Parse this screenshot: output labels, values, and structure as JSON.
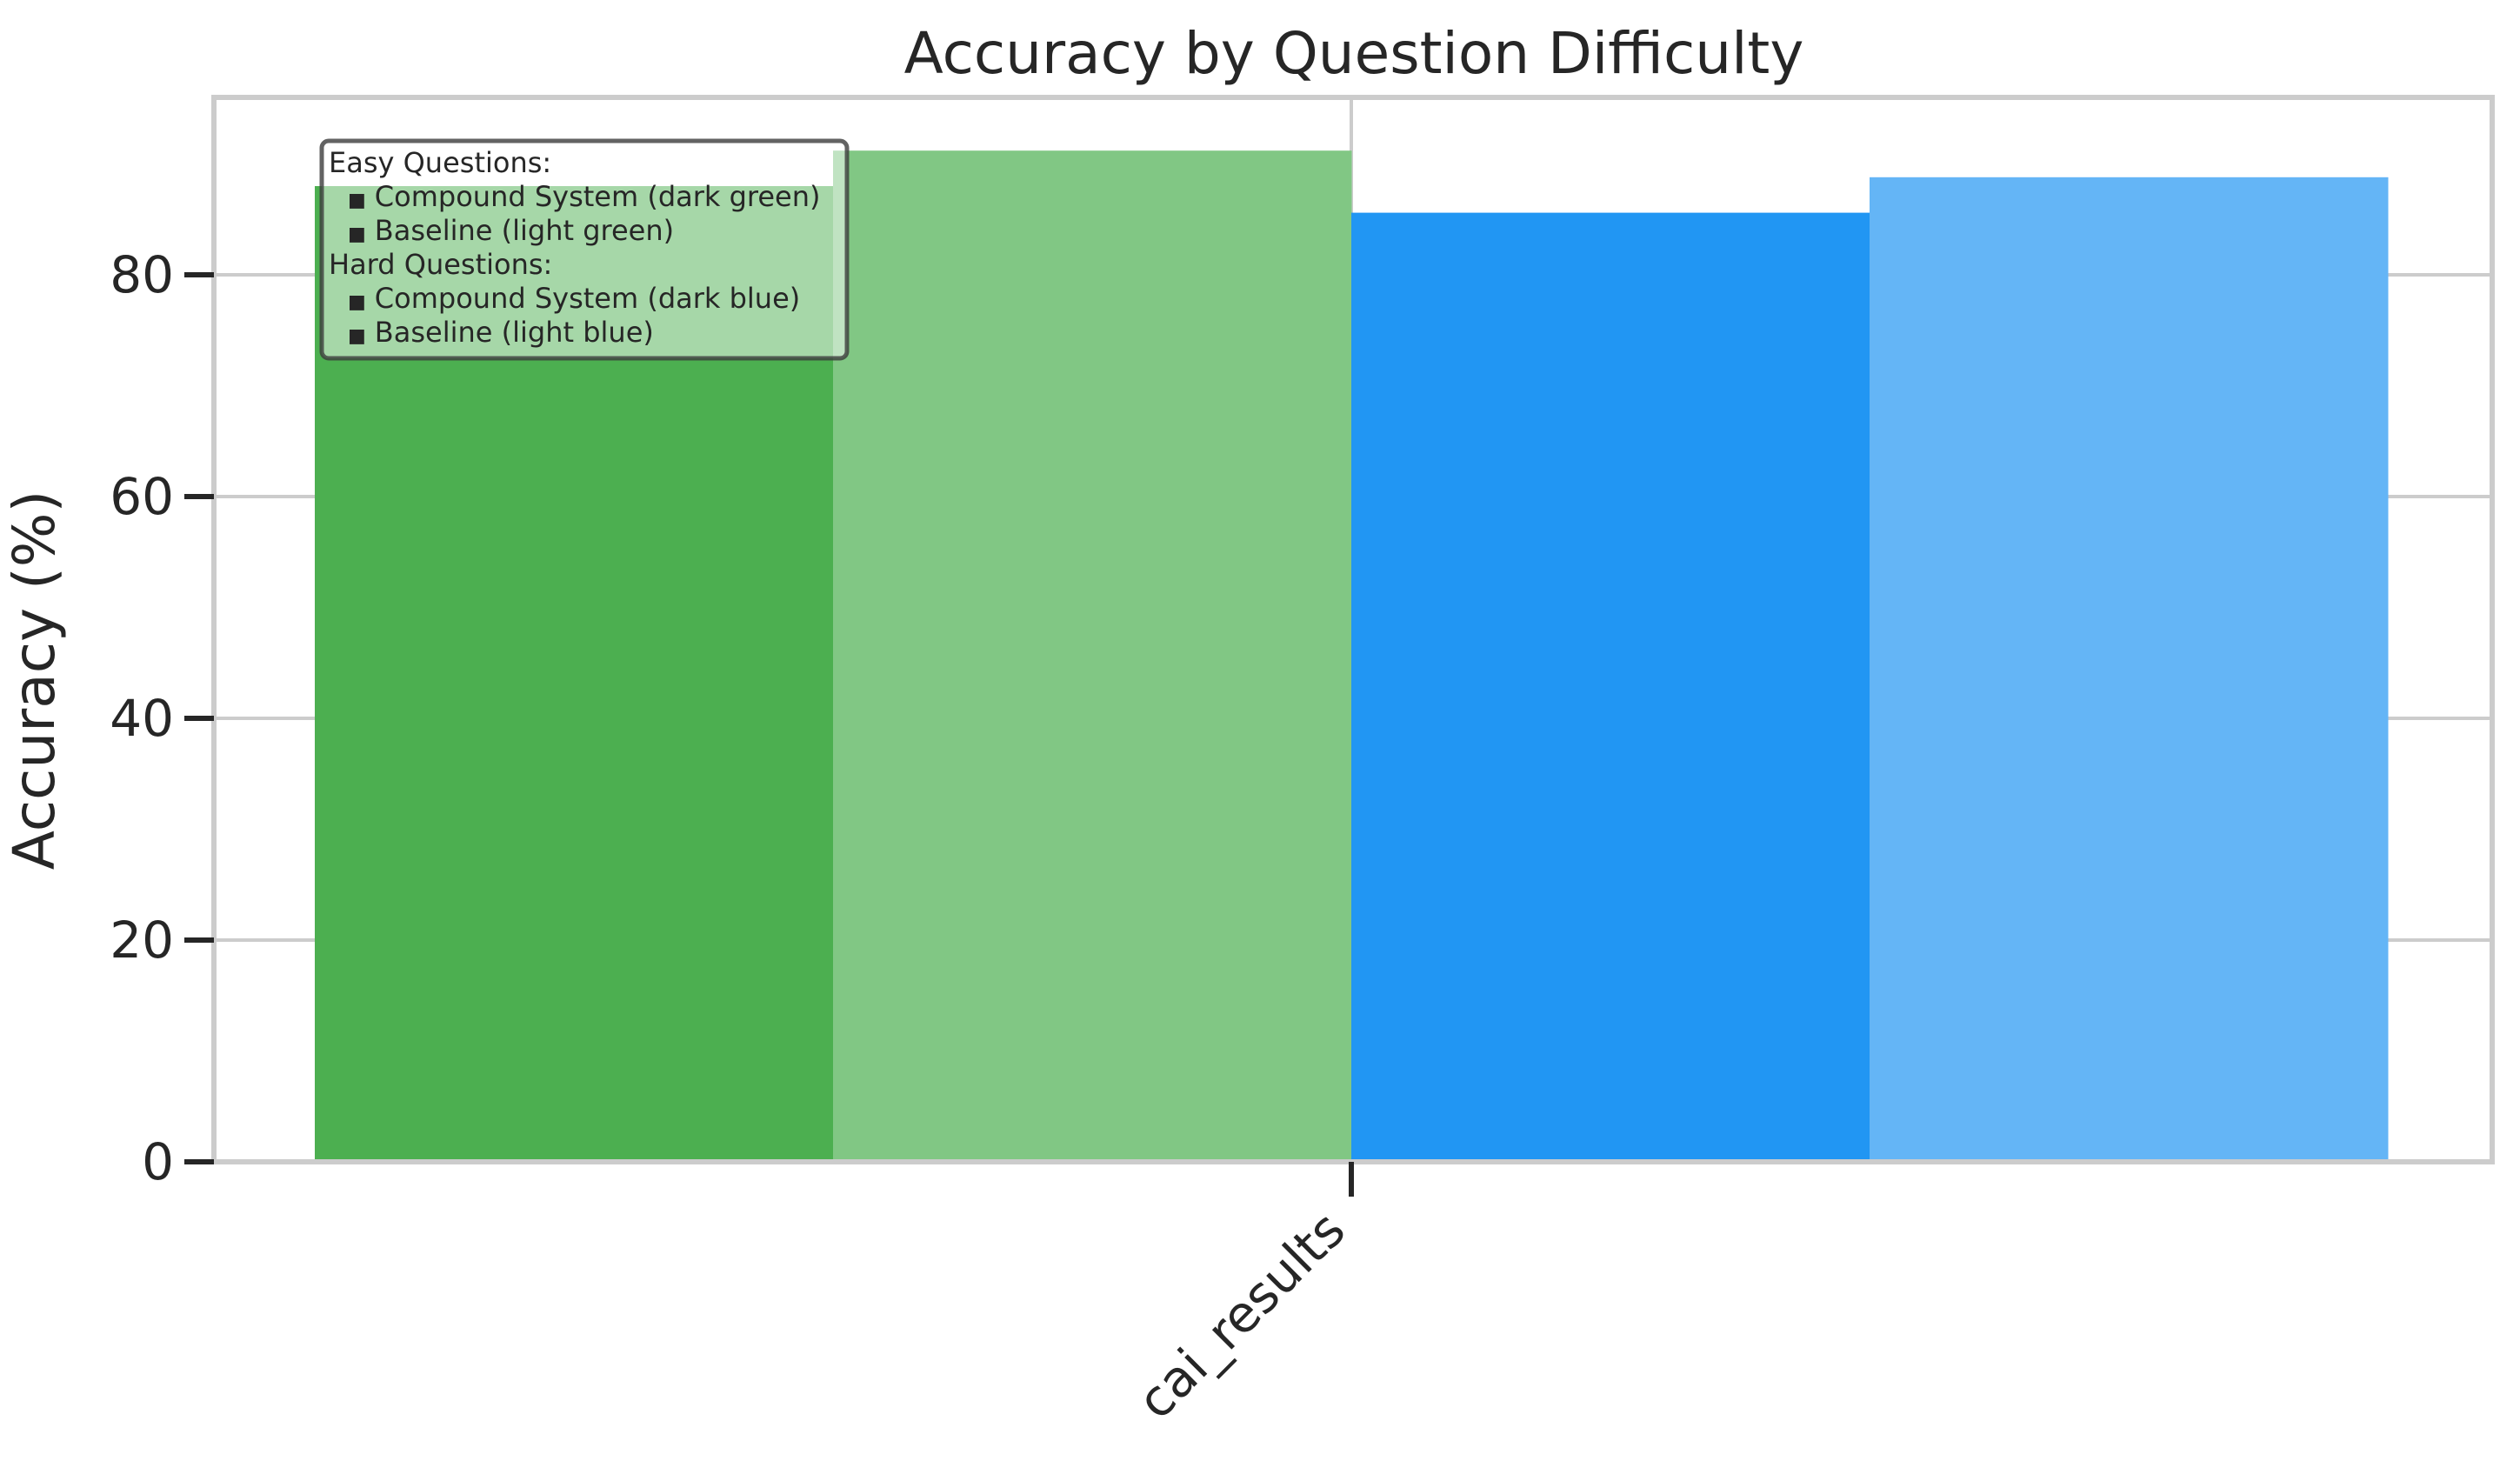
{
  "chart_data": {
    "type": "bar",
    "title": "Accuracy by Question Difficulty",
    "xlabel": "",
    "ylabel": "Accuracy (%)",
    "categories": [
      "cai_results"
    ],
    "yticks": [
      0,
      20,
      40,
      60,
      80
    ],
    "ylim": [
      0,
      96
    ],
    "grid": true,
    "legend_placement": "top-left",
    "series": [
      {
        "key": "easy_compound",
        "values": [
          88
        ],
        "color": "#4caf50"
      },
      {
        "key": "easy_baseline",
        "values": [
          91.2
        ],
        "color": "#81c784"
      },
      {
        "key": "hard_compound",
        "values": [
          85.6
        ],
        "color": "#2196f3"
      },
      {
        "key": "hard_baseline",
        "values": [
          88.8
        ],
        "color": "#64b5f6"
      }
    ],
    "legend_lines": [
      {
        "text": "Easy Questions:",
        "indent": false,
        "bullet": false
      },
      {
        "text": "Compound System (dark green)",
        "indent": true,
        "bullet": true
      },
      {
        "text": "Baseline (light green)",
        "indent": true,
        "bullet": true
      },
      {
        "text": "Hard Questions:",
        "indent": false,
        "bullet": false
      },
      {
        "text": "Compound System (dark blue)",
        "indent": true,
        "bullet": true
      },
      {
        "text": "Baseline (light blue)",
        "indent": true,
        "bullet": true
      }
    ],
    "legend_bullet": "■"
  }
}
